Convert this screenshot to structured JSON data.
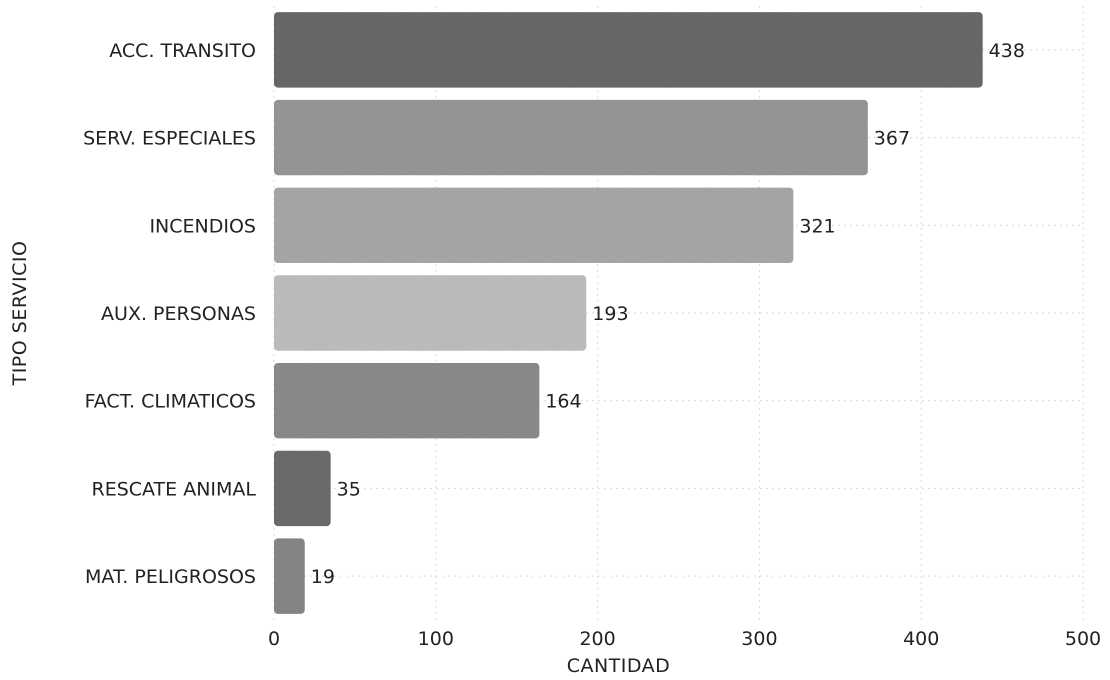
{
  "chart_data": {
    "type": "bar",
    "orientation": "horizontal",
    "categories": [
      "ACC. TRANSITO",
      "SERV. ESPECIALES",
      "INCENDIOS",
      "AUX. PERSONAS",
      "FACT. CLIMATICOS",
      "RESCATE ANIMAL",
      "MAT. PELIGROSOS"
    ],
    "values": [
      438,
      367,
      321,
      193,
      164,
      35,
      19
    ],
    "xlabel": "CANTIDAD",
    "ylabel": "TIPO SERVICIO",
    "xlim": [
      0,
      500
    ],
    "xticks": [
      "0",
      "100",
      "200",
      "300",
      "400",
      "500"
    ],
    "grid": true,
    "bar_colors": [
      "#6b6b6b",
      "#9a9a9a",
      "#ababab",
      "#c2c2c2",
      "#8e8e8e",
      "#6e6e6e",
      "#8a8a8a"
    ]
  }
}
